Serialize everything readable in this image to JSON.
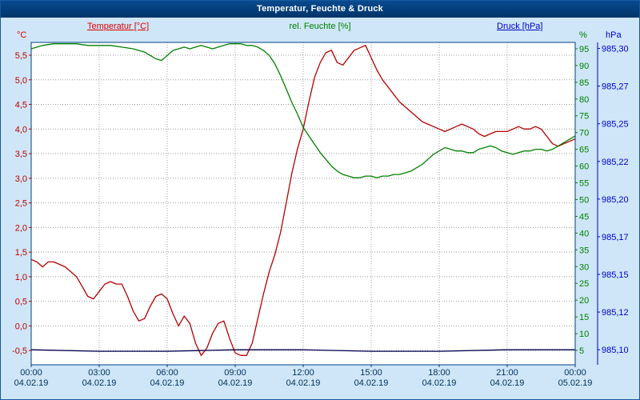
{
  "window": {
    "title": "Temperatur, Feuchte & Druck"
  },
  "legend": {
    "temperature": "Temperatur [°C]",
    "humidity": "rel. Feuchte [%]",
    "pressure": "Druck [hPa]"
  },
  "axis_units": {
    "left": "°C",
    "right_inner": "%",
    "right_outer": "hPa"
  },
  "colors": {
    "background": "#cee6f7",
    "titlebar": "#003e7e",
    "frame": "#004080",
    "gridline": "#9c9c9c",
    "temperature": "#c00000",
    "humidity": "#008000",
    "pressure_line": "#000050",
    "pressure_axis": "#0000cc",
    "x_labels": "#00305c"
  },
  "chart_data": {
    "type": "line",
    "title": "Temperatur, Feuchte & Druck",
    "grid": true,
    "x_axis": {
      "range_hours": [
        0,
        24
      ],
      "ticks": [
        {
          "hour": 0,
          "time": "00:00",
          "date": "04.02.19"
        },
        {
          "hour": 3,
          "time": "03:00",
          "date": "04.02.19"
        },
        {
          "hour": 6,
          "time": "06:00",
          "date": "04.02.19"
        },
        {
          "hour": 9,
          "time": "09:00",
          "date": "04.02.19"
        },
        {
          "hour": 12,
          "time": "12:00",
          "date": "04.02.19"
        },
        {
          "hour": 15,
          "time": "15:00",
          "date": "04.02.19"
        },
        {
          "hour": 18,
          "time": "18:00",
          "date": "04.02.19"
        },
        {
          "hour": 21,
          "time": "21:00",
          "date": "04.02.19"
        },
        {
          "hour": 24,
          "time": "00:00",
          "date": "05.02.19"
        }
      ]
    },
    "axes": {
      "temperature": {
        "unit": "°C",
        "color": "#c00000",
        "min": -0.79,
        "max": 5.76,
        "ticks": [
          {
            "value": 5.5,
            "label": "5,5"
          },
          {
            "value": 5.0,
            "label": "5,0"
          },
          {
            "value": 4.5,
            "label": "4,5"
          },
          {
            "value": 4.0,
            "label": "4,0"
          },
          {
            "value": 3.5,
            "label": "3,5"
          },
          {
            "value": 3.0,
            "label": "3,0"
          },
          {
            "value": 2.5,
            "label": "2,5"
          },
          {
            "value": 2.0,
            "label": "2,0"
          },
          {
            "value": 1.5,
            "label": "1,5"
          },
          {
            "value": 1.0,
            "label": "1,0"
          },
          {
            "value": 0.5,
            "label": "0,5"
          },
          {
            "value": 0.0,
            "label": "0,0"
          },
          {
            "value": -0.5,
            "label": "-0,5"
          }
        ]
      },
      "humidity": {
        "unit": "%",
        "color": "#008000",
        "min": 0.7,
        "max": 96.9,
        "ticks": [
          {
            "value": 95,
            "label": "95"
          },
          {
            "value": 90,
            "label": "90"
          },
          {
            "value": 85,
            "label": "85"
          },
          {
            "value": 80,
            "label": "80"
          },
          {
            "value": 75,
            "label": "75"
          },
          {
            "value": 70,
            "label": "70"
          },
          {
            "value": 65,
            "label": "65"
          },
          {
            "value": 60,
            "label": "60"
          },
          {
            "value": 55,
            "label": "55"
          },
          {
            "value": 50,
            "label": "50"
          },
          {
            "value": 45,
            "label": "45"
          },
          {
            "value": 40,
            "label": "40"
          },
          {
            "value": 35,
            "label": "35"
          },
          {
            "value": 30,
            "label": "30"
          },
          {
            "value": 25,
            "label": "25"
          },
          {
            "value": 20,
            "label": "20"
          },
          {
            "value": 15,
            "label": "15"
          },
          {
            "value": 10,
            "label": "10"
          },
          {
            "value": 5,
            "label": "5"
          }
        ]
      },
      "pressure": {
        "unit": "hPa",
        "color": "#0000cc",
        "min": 985.09,
        "max": 985.304,
        "ticks": [
          {
            "value": 985.3,
            "label": "985,30"
          },
          {
            "value": 985.275,
            "label": "985,27"
          },
          {
            "value": 985.25,
            "label": "985,25"
          },
          {
            "value": 985.225,
            "label": "985,22"
          },
          {
            "value": 985.2,
            "label": "985,20"
          },
          {
            "value": 985.175,
            "label": "985,17"
          },
          {
            "value": 985.15,
            "label": "985,15"
          },
          {
            "value": 985.125,
            "label": "985,12"
          },
          {
            "value": 985.1,
            "label": "985,10"
          }
        ]
      }
    },
    "series": [
      {
        "id": "temperatur",
        "name": "Temperatur [°C]",
        "axis": "temperature",
        "color": "#b40000",
        "points": [
          [
            0,
            1.35
          ],
          [
            0.25,
            1.3
          ],
          [
            0.5,
            1.2
          ],
          [
            0.75,
            1.3
          ],
          [
            1,
            1.3
          ],
          [
            1.25,
            1.25
          ],
          [
            1.5,
            1.2
          ],
          [
            1.75,
            1.1
          ],
          [
            2,
            1.0
          ],
          [
            2.25,
            0.8
          ],
          [
            2.5,
            0.6
          ],
          [
            2.75,
            0.55
          ],
          [
            3,
            0.7
          ],
          [
            3.25,
            0.85
          ],
          [
            3.5,
            0.9
          ],
          [
            3.75,
            0.85
          ],
          [
            4,
            0.85
          ],
          [
            4.25,
            0.6
          ],
          [
            4.5,
            0.3
          ],
          [
            4.75,
            0.1
          ],
          [
            5,
            0.15
          ],
          [
            5.25,
            0.4
          ],
          [
            5.5,
            0.6
          ],
          [
            5.75,
            0.65
          ],
          [
            6,
            0.55
          ],
          [
            6.25,
            0.25
          ],
          [
            6.5,
            0.0
          ],
          [
            6.75,
            0.2
          ],
          [
            7,
            0.05
          ],
          [
            7.25,
            -0.35
          ],
          [
            7.5,
            -0.6
          ],
          [
            7.75,
            -0.45
          ],
          [
            8,
            -0.15
          ],
          [
            8.25,
            0.05
          ],
          [
            8.5,
            0.1
          ],
          [
            8.75,
            -0.25
          ],
          [
            9,
            -0.55
          ],
          [
            9.25,
            -0.6
          ],
          [
            9.5,
            -0.6
          ],
          [
            9.75,
            -0.35
          ],
          [
            10,
            0.15
          ],
          [
            10.25,
            0.65
          ],
          [
            10.5,
            1.1
          ],
          [
            10.75,
            1.45
          ],
          [
            11,
            1.9
          ],
          [
            11.25,
            2.5
          ],
          [
            11.5,
            3.1
          ],
          [
            11.75,
            3.6
          ],
          [
            12,
            4.0
          ],
          [
            12.25,
            4.55
          ],
          [
            12.5,
            5.05
          ],
          [
            12.75,
            5.35
          ],
          [
            13,
            5.55
          ],
          [
            13.25,
            5.6
          ],
          [
            13.5,
            5.35
          ],
          [
            13.75,
            5.3
          ],
          [
            14,
            5.45
          ],
          [
            14.25,
            5.6
          ],
          [
            14.5,
            5.65
          ],
          [
            14.75,
            5.7
          ],
          [
            15,
            5.45
          ],
          [
            15.25,
            5.2
          ],
          [
            15.5,
            5.0
          ],
          [
            15.75,
            4.85
          ],
          [
            16,
            4.7
          ],
          [
            16.25,
            4.55
          ],
          [
            16.5,
            4.45
          ],
          [
            16.75,
            4.35
          ],
          [
            17,
            4.25
          ],
          [
            17.25,
            4.15
          ],
          [
            17.5,
            4.1
          ],
          [
            17.75,
            4.05
          ],
          [
            18,
            4.0
          ],
          [
            18.25,
            3.95
          ],
          [
            18.5,
            4.0
          ],
          [
            18.75,
            4.05
          ],
          [
            19,
            4.1
          ],
          [
            19.25,
            4.05
          ],
          [
            19.5,
            4.0
          ],
          [
            19.75,
            3.9
          ],
          [
            20,
            3.85
          ],
          [
            20.25,
            3.9
          ],
          [
            20.5,
            3.95
          ],
          [
            20.75,
            3.95
          ],
          [
            21,
            3.95
          ],
          [
            21.25,
            4.0
          ],
          [
            21.5,
            4.05
          ],
          [
            21.75,
            4.0
          ],
          [
            22,
            4.0
          ],
          [
            22.25,
            4.05
          ],
          [
            22.5,
            4.0
          ],
          [
            22.75,
            3.85
          ],
          [
            23,
            3.7
          ],
          [
            23.25,
            3.65
          ],
          [
            23.5,
            3.7
          ],
          [
            23.75,
            3.75
          ],
          [
            24,
            3.8
          ]
        ]
      },
      {
        "id": "feuchte",
        "name": "rel. Feuchte [%]",
        "axis": "humidity",
        "color": "#008000",
        "points": [
          [
            0,
            95.0
          ],
          [
            0.5,
            96.0
          ],
          [
            1,
            96.5
          ],
          [
            1.5,
            96.5
          ],
          [
            2,
            96.5
          ],
          [
            2.5,
            96.0
          ],
          [
            3,
            96.0
          ],
          [
            3.5,
            96.0
          ],
          [
            4,
            95.5
          ],
          [
            4.5,
            95.0
          ],
          [
            4.75,
            94.5
          ],
          [
            5,
            94.0
          ],
          [
            5.25,
            93.0
          ],
          [
            5.5,
            92.0
          ],
          [
            5.75,
            91.5
          ],
          [
            6,
            93.0
          ],
          [
            6.25,
            94.5
          ],
          [
            6.5,
            95.0
          ],
          [
            6.75,
            95.5
          ],
          [
            7,
            95.0
          ],
          [
            7.25,
            95.5
          ],
          [
            7.5,
            96.0
          ],
          [
            7.75,
            95.5
          ],
          [
            8,
            95.0
          ],
          [
            8.25,
            95.5
          ],
          [
            8.5,
            96.0
          ],
          [
            8.75,
            96.5
          ],
          [
            9,
            96.5
          ],
          [
            9.25,
            96.5
          ],
          [
            9.5,
            96.0
          ],
          [
            9.75,
            96.0
          ],
          [
            10,
            95.5
          ],
          [
            10.25,
            94.5
          ],
          [
            10.5,
            93.0
          ],
          [
            10.75,
            90.5
          ],
          [
            11,
            87.0
          ],
          [
            11.25,
            83.0
          ],
          [
            11.5,
            79.0
          ],
          [
            11.75,
            75.5
          ],
          [
            12,
            71.5
          ],
          [
            12.25,
            69.0
          ],
          [
            12.5,
            66.5
          ],
          [
            12.75,
            64.0
          ],
          [
            13,
            62.0
          ],
          [
            13.25,
            60.0
          ],
          [
            13.5,
            58.5
          ],
          [
            13.75,
            57.5
          ],
          [
            14,
            57.0
          ],
          [
            14.25,
            56.5
          ],
          [
            14.5,
            56.5
          ],
          [
            14.75,
            57.0
          ],
          [
            15,
            57.0
          ],
          [
            15.25,
            56.5
          ],
          [
            15.5,
            57.0
          ],
          [
            15.75,
            57.0
          ],
          [
            16,
            57.5
          ],
          [
            16.25,
            57.5
          ],
          [
            16.5,
            58.0
          ],
          [
            16.75,
            58.5
          ],
          [
            17,
            59.5
          ],
          [
            17.25,
            60.5
          ],
          [
            17.5,
            62.0
          ],
          [
            17.75,
            63.5
          ],
          [
            18,
            64.5
          ],
          [
            18.25,
            65.5
          ],
          [
            18.5,
            65.0
          ],
          [
            18.75,
            64.5
          ],
          [
            19,
            64.5
          ],
          [
            19.25,
            64.0
          ],
          [
            19.5,
            64.0
          ],
          [
            19.75,
            65.0
          ],
          [
            20,
            65.5
          ],
          [
            20.25,
            66.0
          ],
          [
            20.5,
            65.5
          ],
          [
            20.75,
            64.5
          ],
          [
            21,
            64.0
          ],
          [
            21.25,
            63.5
          ],
          [
            21.5,
            64.0
          ],
          [
            21.75,
            64.5
          ],
          [
            22,
            64.5
          ],
          [
            22.25,
            65.0
          ],
          [
            22.5,
            65.0
          ],
          [
            22.75,
            64.5
          ],
          [
            23,
            65.0
          ],
          [
            23.25,
            66.0
          ],
          [
            23.5,
            67.0
          ],
          [
            23.75,
            68.0
          ],
          [
            24,
            69.0
          ]
        ]
      },
      {
        "id": "druck",
        "name": "Druck [hPa]",
        "axis": "pressure",
        "color": "#000050",
        "points": [
          [
            0,
            985.1
          ],
          [
            3,
            985.099
          ],
          [
            6,
            985.099
          ],
          [
            9,
            985.1
          ],
          [
            12,
            985.1
          ],
          [
            15,
            985.099
          ],
          [
            18,
            985.099
          ],
          [
            21,
            985.1
          ],
          [
            24,
            985.1
          ]
        ]
      }
    ]
  }
}
